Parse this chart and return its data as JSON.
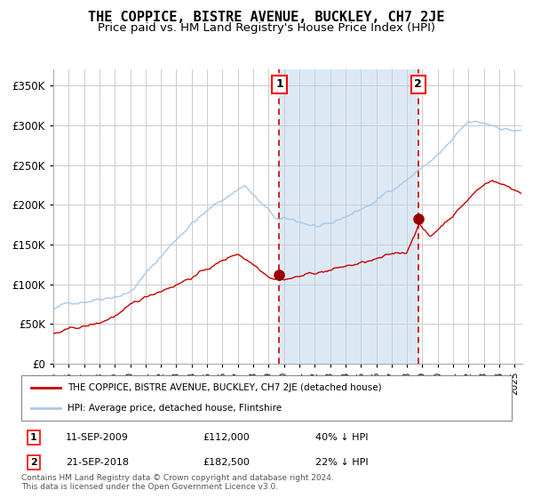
{
  "title": "THE COPPICE, BISTRE AVENUE, BUCKLEY, CH7 2JE",
  "subtitle": "Price paid vs. HM Land Registry's House Price Index (HPI)",
  "title_fontsize": 11,
  "subtitle_fontsize": 9.5,
  "ylim": [
    0,
    370000
  ],
  "yticks": [
    0,
    50000,
    100000,
    150000,
    200000,
    250000,
    300000,
    350000
  ],
  "ytick_labels": [
    "£0",
    "£50K",
    "£100K",
    "£150K",
    "£200K",
    "£250K",
    "£300K",
    "£350K"
  ],
  "hpi_color": "#a8c8e8",
  "price_color": "#cc0000",
  "marker_color": "#990000",
  "vline_color": "#cc0000",
  "shade_color": "#dce9f5",
  "grid_color": "#cccccc",
  "sale1_date_num": 2009.7,
  "sale1_price": 112000,
  "sale2_date_num": 2018.72,
  "sale2_price": 182500,
  "legend_line1": "THE COPPICE, BISTRE AVENUE, BUCKLEY, CH7 2JE (detached house)",
  "legend_line2": "HPI: Average price, detached house, Flintshire",
  "table_row1": [
    "1",
    "11-SEP-2009",
    "£112,000",
    "40% ↓ HPI"
  ],
  "table_row2": [
    "2",
    "21-SEP-2018",
    "£182,500",
    "22% ↓ HPI"
  ],
  "footnote1": "Contains HM Land Registry data © Crown copyright and database right 2024.",
  "footnote2": "This data is licensed under the Open Government Licence v3.0.",
  "xmin": 1995.0,
  "xmax": 2025.5
}
